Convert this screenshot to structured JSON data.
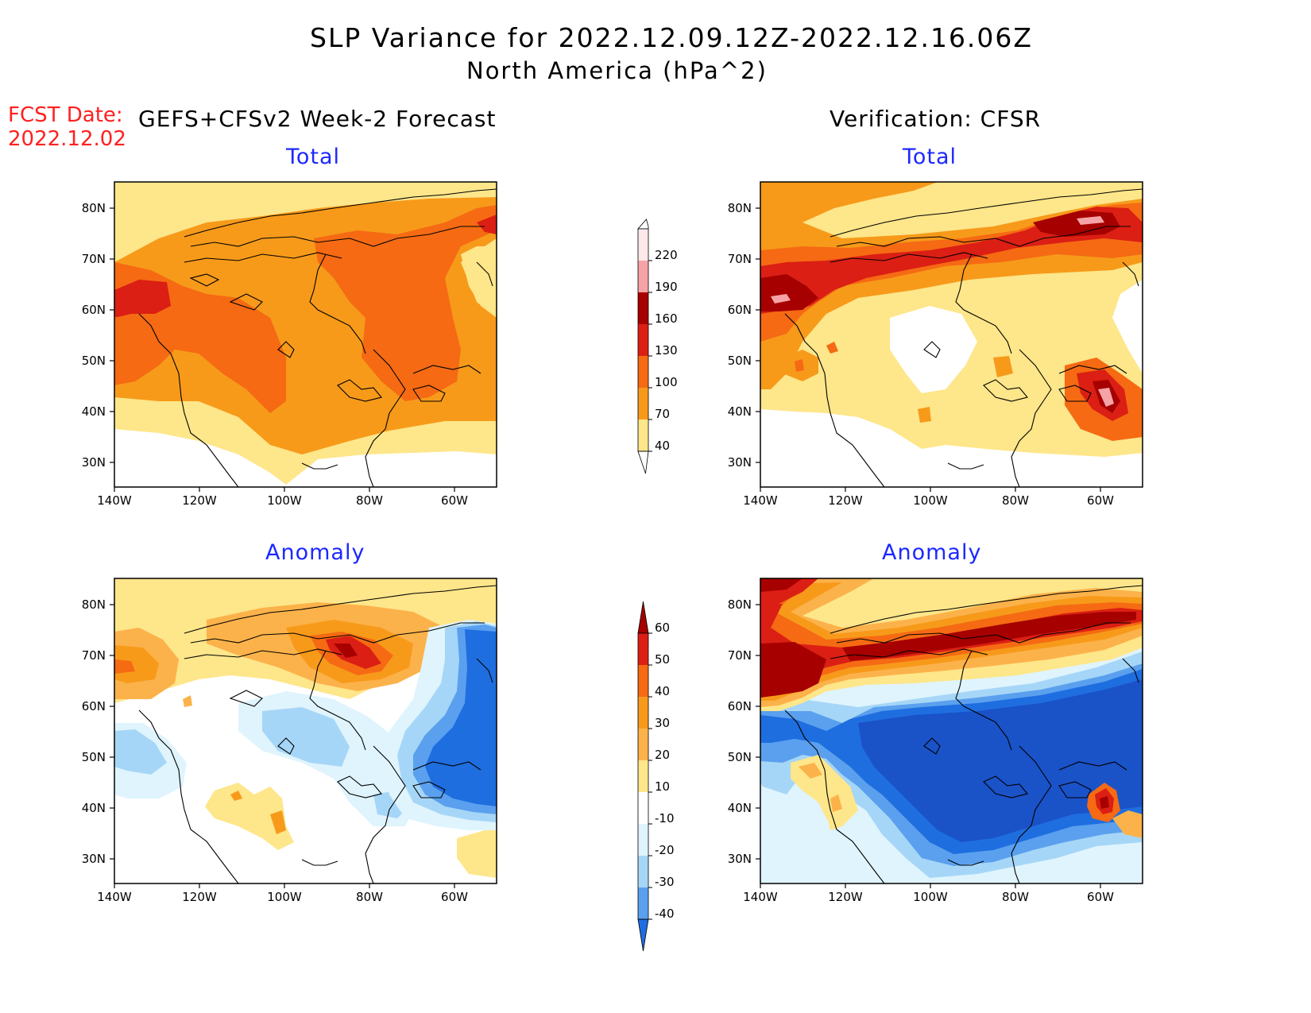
{
  "title": "SLP Variance for 2022.12.09.12Z-2022.12.16.06Z",
  "subtitle": "North America (hPa^2)",
  "fcst_label": "FCST Date:",
  "fcst_date": "2022.12.02",
  "left_header": "GEFS+CFSv2 Week-2 Forecast",
  "right_header": "Verification: CFSR",
  "panels": {
    "fc_total": "Total",
    "ver_total": "Total",
    "fc_anom": "Anomaly",
    "ver_anom": "Anomaly"
  },
  "lat_ticks": [
    "80N",
    "70N",
    "60N",
    "50N",
    "40N",
    "30N"
  ],
  "lon_ticks": [
    "140W",
    "120W",
    "100W",
    "80W",
    "60W"
  ],
  "colors": {
    "white": "#ffffff",
    "yellow": "#fee68a",
    "lorange": "#fcb24a",
    "orange": "#f79a1a",
    "dorange": "#f56a13",
    "red": "#db1f14",
    "dred": "#a60000",
    "pink": "#f5a3a6",
    "lpink": "#fde8ea",
    "lblue1": "#dff4fd",
    "lblue2": "#a6d6f7",
    "blue3": "#5aa0ee",
    "blue4": "#1f6ee0",
    "navy": "#1a52c8"
  },
  "colorbar_total": [
    "220",
    "190",
    "160",
    "130",
    "100",
    "70",
    "40"
  ],
  "colorbar_anom": [
    "60",
    "50",
    "40",
    "30",
    "20",
    "10",
    "-10",
    "-20",
    "-30",
    "-40"
  ]
}
